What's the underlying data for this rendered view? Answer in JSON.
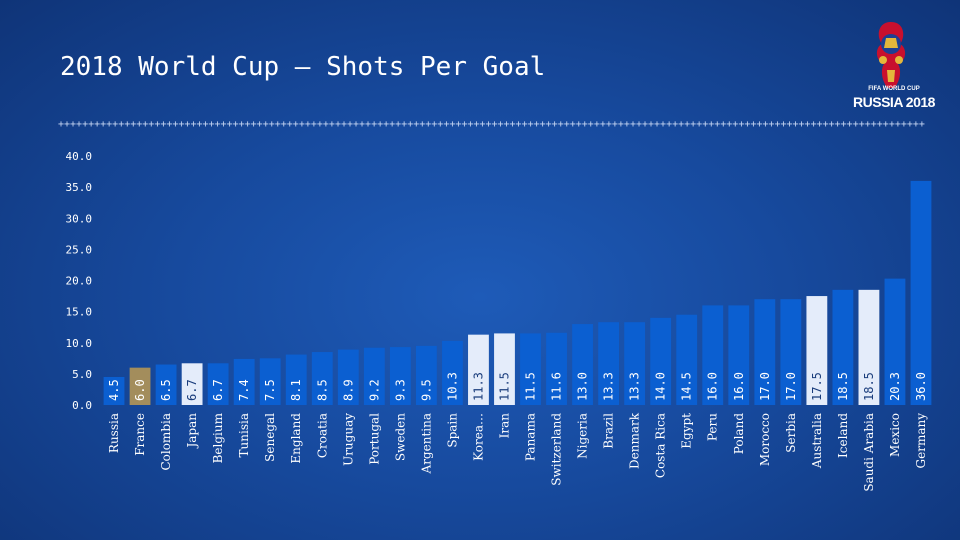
{
  "title": "2018 World Cup  –  Shots Per Goal",
  "logo": {
    "line1": "FIFA WORLD CUP",
    "line2": "RUSSIA 2018"
  },
  "colors": {
    "bar_default": "#0b5fd1",
    "bar_highlight_light": "#e4ecfa",
    "bar_highlight_gold": "#a38d5c",
    "axis_text": "#ffffff"
  },
  "chart_data": {
    "type": "bar",
    "title": "2018 World Cup  –  Shots Per Goal",
    "xlabel": "",
    "ylabel": "",
    "ylim": [
      0,
      40
    ],
    "yticks": [
      "0.0",
      "5.0",
      "10.0",
      "15.0",
      "20.0",
      "25.0",
      "30.0",
      "35.0",
      "40.0"
    ],
    "grid": false,
    "categories": [
      "Russia",
      "France",
      "Colombia",
      "Japan",
      "Belgium",
      "Tunisia",
      "Senegal",
      "England",
      "Croatia",
      "Uruguay",
      "Portugal",
      "Sweden",
      "Argentina",
      "Spain",
      "Korea…",
      "Iran",
      "Panama",
      "Switzerland",
      "Nigeria",
      "Brazil",
      "Denmark",
      "Costa Rica",
      "Egypt",
      "Peru",
      "Poland",
      "Morocco",
      "Serbia",
      "Australia",
      "Iceland",
      "Saudi Arabia",
      "Mexico",
      "Germany"
    ],
    "values": [
      4.5,
      6.0,
      6.5,
      6.7,
      6.7,
      7.4,
      7.5,
      8.1,
      8.5,
      8.9,
      9.2,
      9.3,
      9.5,
      10.3,
      11.3,
      11.5,
      11.5,
      11.6,
      13.0,
      13.3,
      13.3,
      14.0,
      14.5,
      16.0,
      16.0,
      17.0,
      17.0,
      17.5,
      18.5,
      18.5,
      20.3,
      36.0
    ],
    "value_labels": [
      "4.5",
      "6.0",
      "6.5",
      "6.7",
      "6.7",
      "7.4",
      "7.5",
      "8.1",
      "8.5",
      "8.9",
      "9.2",
      "9.3",
      "9.5",
      "10.3",
      "11.3",
      "11.5",
      "11.5",
      "11.6",
      "13.0",
      "13.3",
      "13.3",
      "14.0",
      "14.5",
      "16.0",
      "16.0",
      "17.0",
      "17.0",
      "17.5",
      "18.5",
      "18.5",
      "20.3",
      "36.0"
    ],
    "highlight": [
      "default",
      "gold",
      "default",
      "light",
      "default",
      "default",
      "default",
      "default",
      "default",
      "default",
      "default",
      "default",
      "default",
      "default",
      "light",
      "light",
      "default",
      "default",
      "default",
      "default",
      "default",
      "default",
      "default",
      "default",
      "default",
      "default",
      "default",
      "light",
      "default",
      "light",
      "default",
      "default"
    ]
  }
}
